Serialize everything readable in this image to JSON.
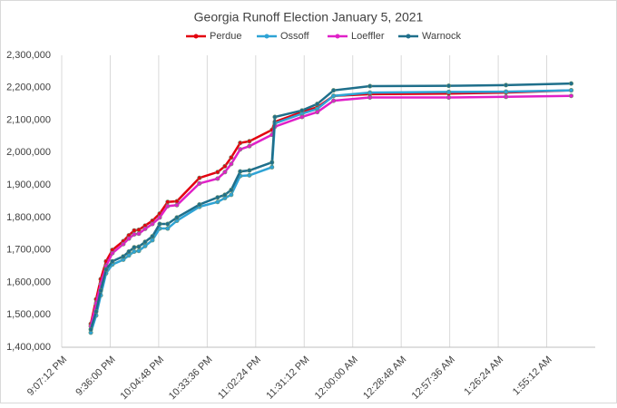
{
  "chart_data": {
    "type": "line",
    "title": "Georgia Runoff Election January 5, 2021",
    "x": [
      0.892,
      0.8942,
      0.8961,
      0.8983,
      0.9009,
      0.9054,
      0.9077,
      0.9099,
      0.9118,
      0.9144,
      0.9174,
      0.9204,
      0.9237,
      0.9275,
      0.9368,
      0.9443,
      0.9473,
      0.9499,
      0.9536,
      0.9574,
      0.9667,
      0.9679,
      0.9791,
      0.9854,
      0.9921,
      1.0071,
      1.0396,
      1.0632,
      1.0901
    ],
    "series": [
      {
        "name": "Perdue",
        "color": "#e3000f",
        "values": [
          1472000,
          1548000,
          1610000,
          1665000,
          1700000,
          1727000,
          1745000,
          1760000,
          1762000,
          1775000,
          1790000,
          1812000,
          1848000,
          1850000,
          1922000,
          1940000,
          1958000,
          1985000,
          2030000,
          2035000,
          2070000,
          2095000,
          2125000,
          2140000,
          2175000,
          2180000,
          2182000,
          2185000,
          2192000
        ]
      },
      {
        "name": "Ossoff",
        "color": "#2ea3d5",
        "values": [
          1445000,
          1498000,
          1560000,
          1628000,
          1655000,
          1670000,
          1683000,
          1695000,
          1697000,
          1712000,
          1730000,
          1766000,
          1766000,
          1790000,
          1833000,
          1848000,
          1860000,
          1870000,
          1928000,
          1930000,
          1955000,
          2090000,
          2120000,
          2135000,
          2175000,
          2185000,
          2187000,
          2188000,
          2192000
        ]
      },
      {
        "name": "Loeffler",
        "color": "#e020c8",
        "values": [
          1465000,
          1535000,
          1595000,
          1650000,
          1690000,
          1718000,
          1735000,
          1748000,
          1750000,
          1765000,
          1780000,
          1800000,
          1835000,
          1838000,
          1905000,
          1920000,
          1940000,
          1965000,
          2010000,
          2020000,
          2055000,
          2080000,
          2110000,
          2125000,
          2160000,
          2170000,
          2170000,
          2172000,
          2175000
        ]
      },
      {
        "name": "Warnock",
        "color": "#1f6f8b",
        "values": [
          1455000,
          1510000,
          1575000,
          1640000,
          1665000,
          1680000,
          1695000,
          1708000,
          1710000,
          1725000,
          1742000,
          1780000,
          1780000,
          1800000,
          1840000,
          1862000,
          1870000,
          1885000,
          1942000,
          1945000,
          1970000,
          2110000,
          2130000,
          2150000,
          2192000,
          2205000,
          2206000,
          2208000,
          2213000
        ]
      }
    ],
    "xlim": [
      0.88,
      1.1
    ],
    "xticks": [
      {
        "value": 0.88,
        "label": "9:07:12 PM"
      },
      {
        "value": 0.9,
        "label": "9:36:00 PM"
      },
      {
        "value": 0.92,
        "label": "10:04:48 PM"
      },
      {
        "value": 0.94,
        "label": "10:33:36 PM"
      },
      {
        "value": 0.96,
        "label": "11:02:24 PM"
      },
      {
        "value": 0.98,
        "label": "11:31:12 PM"
      },
      {
        "value": 1.0,
        "label": "12:00:00 AM"
      },
      {
        "value": 1.02,
        "label": "12:28:48 AM"
      },
      {
        "value": 1.04,
        "label": "12:57:36 AM"
      },
      {
        "value": 1.06,
        "label": "1:26:24 AM"
      },
      {
        "value": 1.08,
        "label": "1:55:12 AM"
      }
    ],
    "ylim": [
      1400000,
      2300000
    ],
    "yticks": [
      {
        "value": 1400000,
        "label": "1,400,000"
      },
      {
        "value": 1500000,
        "label": "1,500,000"
      },
      {
        "value": 1600000,
        "label": "1,600,000"
      },
      {
        "value": 1700000,
        "label": "1,700,000"
      },
      {
        "value": 1800000,
        "label": "1,800,000"
      },
      {
        "value": 1900000,
        "label": "1,900,000"
      },
      {
        "value": 2000000,
        "label": "2,000,000"
      },
      {
        "value": 2100000,
        "label": "2,100,000"
      },
      {
        "value": 2200000,
        "label": "2,200,000"
      },
      {
        "value": 2300000,
        "label": "2,300,000"
      }
    ],
    "grid": "x",
    "legend": "top"
  }
}
